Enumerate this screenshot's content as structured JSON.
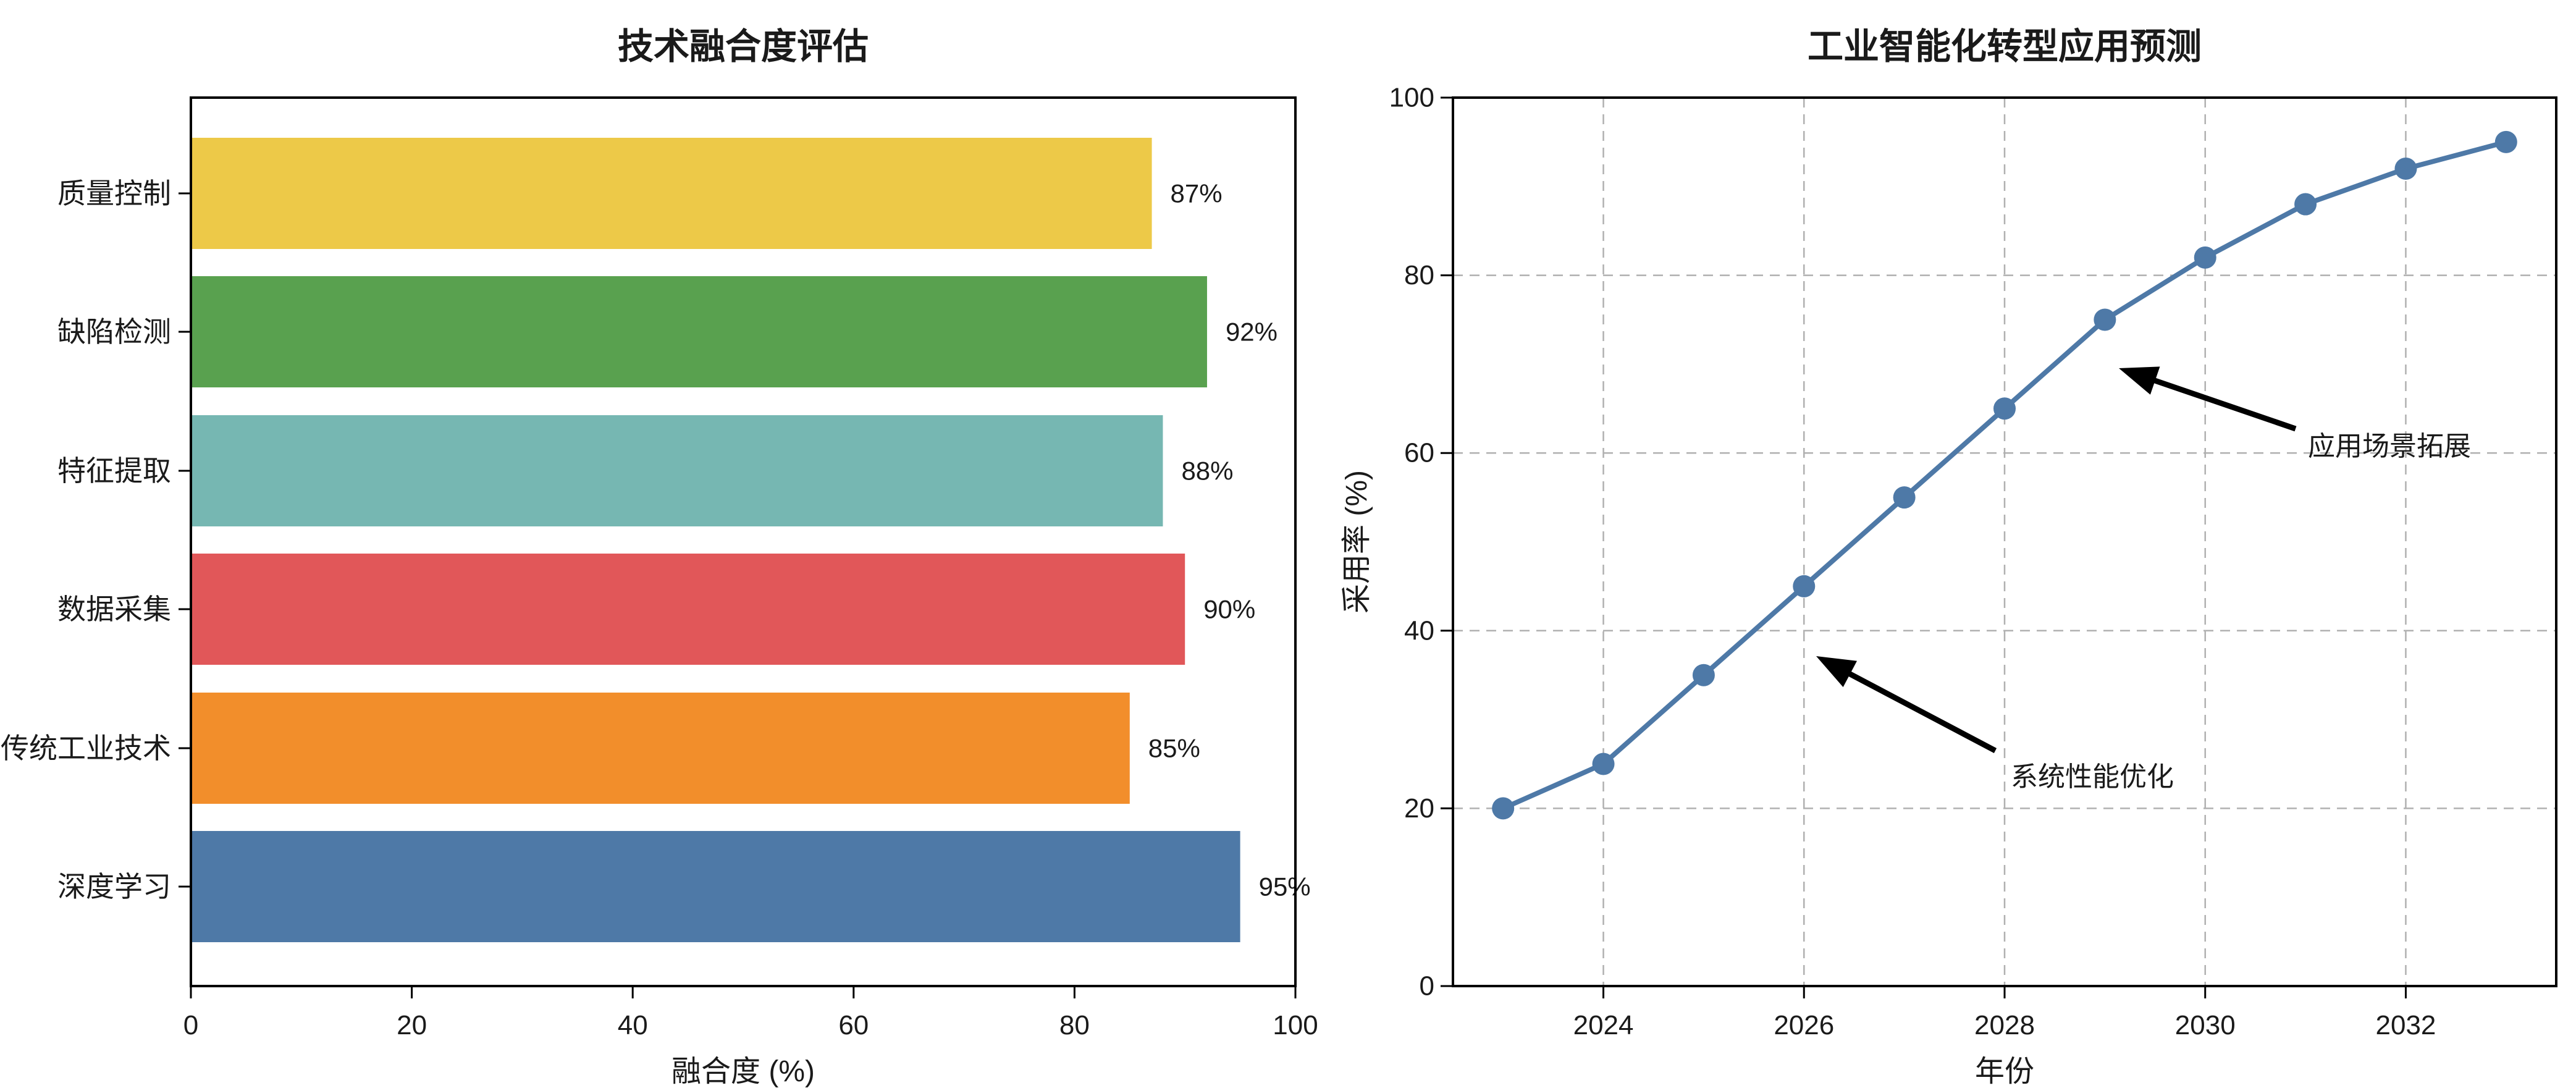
{
  "figure": {
    "background": "#ffffff",
    "spine_color": "#000000",
    "grid_color": "#b0b0b0",
    "text_color": "#1a1a1a"
  },
  "chart_data": [
    {
      "type": "bar",
      "orientation": "horizontal",
      "title": "技术融合度评估",
      "xlabel": "融合度 (%)",
      "ylabel": "",
      "xlim": [
        0,
        100
      ],
      "xticks": [
        "0",
        "20",
        "40",
        "60",
        "80",
        "100"
      ],
      "xtick_values": [
        0,
        20,
        40,
        60,
        80,
        100
      ],
      "categories_top_to_bottom": [
        "质量控制",
        "缺陷检测",
        "特征提取",
        "数据采集",
        "传统工业技术",
        "深度学习"
      ],
      "values": [
        87,
        92,
        88,
        90,
        85,
        95
      ],
      "value_labels": [
        "87%",
        "92%",
        "88%",
        "90%",
        "85%",
        "95%"
      ],
      "bar_colors": [
        "#EDC948",
        "#59A14F",
        "#76B7B2",
        "#E15759",
        "#F28E2B",
        "#4E79A7"
      ],
      "grid": "off",
      "legend": "none"
    },
    {
      "type": "line",
      "title": "工业智能化转型应用预测",
      "xlabel": "年份",
      "ylabel": "采用率 (%)",
      "ylim": [
        0,
        100
      ],
      "yticks": [
        "0",
        "20",
        "40",
        "60",
        "80",
        "100"
      ],
      "ytick_values": [
        0,
        20,
        40,
        60,
        80,
        100
      ],
      "xticks": [
        "2024",
        "2026",
        "2028",
        "2030",
        "2032"
      ],
      "xtick_values": [
        2024,
        2026,
        2028,
        2030,
        2032
      ],
      "x": [
        2023,
        2024,
        2025,
        2026,
        2027,
        2028,
        2029,
        2030,
        2031,
        2032,
        2033
      ],
      "values": [
        20,
        25,
        35,
        45,
        55,
        65,
        75,
        82,
        88,
        92,
        95
      ],
      "line_color": "#4E79A7",
      "marker": "circle",
      "grid": "dashed",
      "legend": "none",
      "annotations": [
        {
          "text": "应用场景拓展",
          "arrow_color": "#000000"
        },
        {
          "text": "系统性能优化",
          "arrow_color": "#000000"
        }
      ]
    }
  ]
}
